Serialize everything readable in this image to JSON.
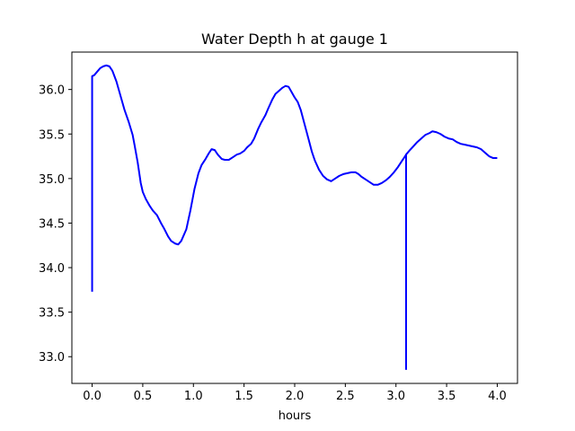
{
  "chart_data": {
    "type": "line",
    "title": "Water Depth h at gauge 1",
    "xlabel": "hours",
    "ylabel": "",
    "xlim": [
      -0.2,
      4.2
    ],
    "ylim": [
      32.7,
      36.42
    ],
    "xticks": [
      0.0,
      0.5,
      1.0,
      1.5,
      2.0,
      2.5,
      3.0,
      3.5,
      4.0
    ],
    "xtick_labels": [
      "0.0",
      "0.5",
      "1.0",
      "1.5",
      "2.0",
      "2.5",
      "3.0",
      "3.5",
      "4.0"
    ],
    "yticks": [
      33.0,
      33.5,
      34.0,
      34.5,
      35.0,
      35.5,
      36.0
    ],
    "ytick_labels": [
      "33.0",
      "33.5",
      "34.0",
      "34.5",
      "35.0",
      "35.5",
      "36.0"
    ],
    "grid": false,
    "series": [
      {
        "color": "#0000ff",
        "x": [
          0.0,
          0.0,
          0.02,
          0.05,
          0.08,
          0.11,
          0.14,
          0.17,
          0.2,
          0.24,
          0.28,
          0.32,
          0.36,
          0.4,
          0.42,
          0.45,
          0.48,
          0.5,
          0.53,
          0.57,
          0.6,
          0.64,
          0.68,
          0.71,
          0.75,
          0.78,
          0.82,
          0.85,
          0.88,
          0.93,
          0.97,
          1.01,
          1.05,
          1.08,
          1.12,
          1.15,
          1.18,
          1.21,
          1.24,
          1.28,
          1.31,
          1.35,
          1.39,
          1.43,
          1.46,
          1.5,
          1.53,
          1.57,
          1.6,
          1.64,
          1.67,
          1.71,
          1.74,
          1.78,
          1.81,
          1.84,
          1.88,
          1.91,
          1.94,
          1.97,
          2.0,
          2.03,
          2.06,
          2.1,
          2.14,
          2.17,
          2.2,
          2.24,
          2.28,
          2.32,
          2.36,
          2.4,
          2.44,
          2.48,
          2.52,
          2.56,
          2.6,
          2.63,
          2.66,
          2.7,
          2.74,
          2.78,
          2.82,
          2.86,
          2.9,
          2.94,
          2.98,
          3.02,
          3.06,
          3.09,
          3.1,
          3.1,
          3.1,
          3.1,
          3.1,
          3.1,
          3.13,
          3.17,
          3.21,
          3.25,
          3.29,
          3.33,
          3.36,
          3.4,
          3.44,
          3.48,
          3.52,
          3.56,
          3.6,
          3.64,
          3.68,
          3.72,
          3.76,
          3.8,
          3.84,
          3.88,
          3.92,
          3.96,
          4.0
        ],
        "y": [
          33.73,
          36.15,
          36.16,
          36.2,
          36.24,
          36.26,
          36.27,
          36.26,
          36.21,
          36.09,
          35.93,
          35.77,
          35.64,
          35.49,
          35.37,
          35.18,
          34.95,
          34.85,
          34.77,
          34.69,
          34.64,
          34.59,
          34.5,
          34.44,
          34.35,
          34.3,
          34.27,
          34.26,
          34.3,
          34.43,
          34.64,
          34.88,
          35.06,
          35.15,
          35.22,
          35.28,
          35.33,
          35.32,
          35.27,
          35.22,
          35.21,
          35.21,
          35.24,
          35.27,
          35.28,
          35.31,
          35.35,
          35.39,
          35.45,
          35.56,
          35.63,
          35.71,
          35.79,
          35.89,
          35.95,
          35.98,
          36.02,
          36.04,
          36.03,
          35.97,
          35.91,
          35.86,
          35.77,
          35.6,
          35.43,
          35.3,
          35.2,
          35.1,
          35.03,
          34.99,
          34.97,
          35.0,
          35.03,
          35.05,
          35.06,
          35.07,
          35.07,
          35.05,
          35.02,
          34.99,
          34.96,
          34.93,
          34.93,
          34.95,
          34.98,
          35.02,
          35.07,
          35.13,
          35.2,
          35.25,
          35.27,
          32.86,
          35.27,
          32.9,
          35.26,
          35.27,
          35.31,
          35.36,
          35.41,
          35.45,
          35.49,
          35.51,
          35.53,
          35.52,
          35.5,
          35.47,
          35.45,
          35.44,
          35.41,
          35.39,
          35.38,
          35.37,
          35.36,
          35.35,
          35.33,
          35.29,
          35.25,
          35.23,
          35.23
        ]
      }
    ]
  }
}
